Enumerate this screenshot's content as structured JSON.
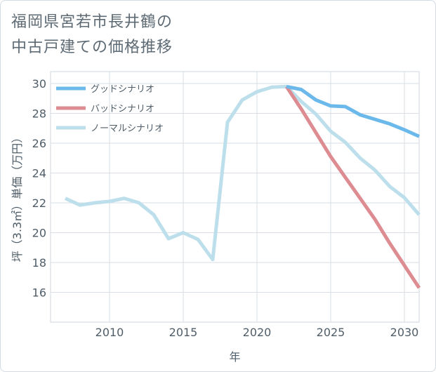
{
  "title_lines": [
    "福岡県宮若市長井鶴の",
    "中古戸建ての価格推移"
  ],
  "chart_data": {
    "type": "line",
    "xlabel": "年",
    "ylabel": "坪（3.3㎡）単価（万円）",
    "xlim": [
      2006,
      2031
    ],
    "ylim": [
      14,
      30.8
    ],
    "x_ticks": [
      2010,
      2015,
      2020,
      2025,
      2030
    ],
    "y_ticks": [
      16,
      18,
      20,
      22,
      24,
      26,
      28,
      30
    ],
    "grid": true,
    "legend_position": "top-left",
    "series": [
      {
        "name": "グッドシナリオ",
        "color": "#6bb8ea",
        "x": [
          2022,
          2023,
          2024,
          2025,
          2026,
          2027,
          2028,
          2029,
          2030,
          2031
        ],
        "values": [
          29.8,
          29.6,
          28.9,
          28.5,
          28.45,
          27.9,
          27.6,
          27.3,
          26.9,
          26.45
        ]
      },
      {
        "name": "バッドシナリオ",
        "color": "#dd8c92",
        "x": [
          2022,
          2023,
          2024,
          2025,
          2026,
          2027,
          2028,
          2029,
          2030,
          2031
        ],
        "values": [
          29.8,
          28.3,
          26.7,
          25.1,
          23.7,
          22.3,
          20.9,
          19.3,
          17.8,
          16.3
        ]
      },
      {
        "name": "ノーマルシナリオ",
        "color": "#bddfec",
        "x": [
          2007,
          2008,
          2009,
          2010,
          2011,
          2012,
          2013,
          2014,
          2015,
          2016,
          2017,
          2018,
          2019,
          2020,
          2021,
          2022,
          2023,
          2024,
          2025,
          2026,
          2027,
          2028,
          2029,
          2030,
          2031
        ],
        "values": [
          22.3,
          21.85,
          22.0,
          22.1,
          22.3,
          22.0,
          21.2,
          19.6,
          20.0,
          19.55,
          18.2,
          27.4,
          28.9,
          29.45,
          29.75,
          29.8,
          28.8,
          27.95,
          26.8,
          26.05,
          25.0,
          24.2,
          23.1,
          22.35,
          21.2
        ]
      }
    ]
  }
}
